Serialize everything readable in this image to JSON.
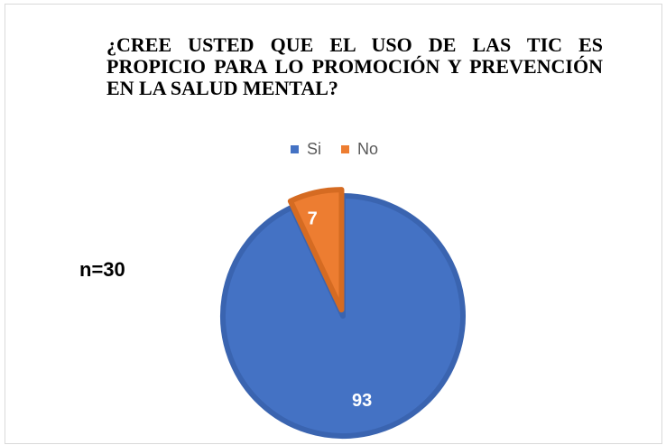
{
  "chart_data": {
    "type": "pie",
    "title": "¿CREE USTED QUE EL USO DE LAS TIC ES PROPICIO PARA LO PROMOCIÓN Y PREVENCIÓN EN LA SALUD MENTAL?",
    "categories": [
      "Si",
      "No"
    ],
    "values": [
      93,
      7
    ],
    "colors": [
      "#4472c4",
      "#ed7d31"
    ],
    "annotation": "n=30",
    "legend": "top"
  }
}
